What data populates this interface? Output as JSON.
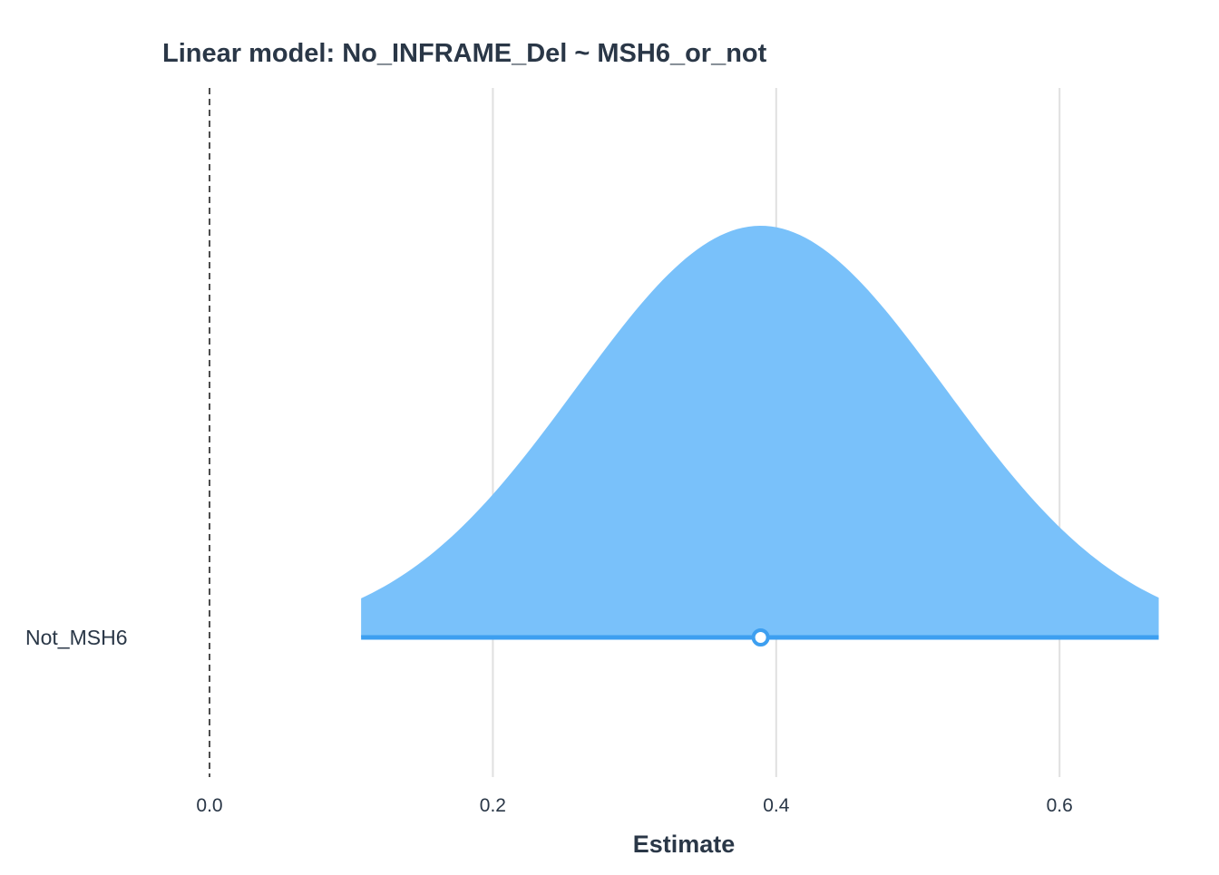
{
  "chart_data": {
    "type": "area",
    "title": "Linear model: No_INFRAME_Del ~ MSH6_or_not",
    "xlabel": "Estimate",
    "ylabel": "",
    "xlim": [
      -0.1,
      0.67
    ],
    "x_ticks": [
      0.0,
      0.2,
      0.4,
      0.6
    ],
    "x_tick_labels": [
      "0.0",
      "0.2",
      "0.4",
      "0.6"
    ],
    "grid": "vertical major gridlines",
    "reference_line": {
      "x": 0.0,
      "style": "dashed"
    },
    "categories": [
      "Not_MSH6"
    ],
    "series": [
      {
        "category": "Not_MSH6",
        "estimate": 0.389,
        "interval": [
          0.107,
          0.67
        ],
        "distribution": "normal",
        "sd": 0.13
      }
    ],
    "colors": {
      "fill": "#76c0fa",
      "line": "#3d9ff0",
      "point_fill": "#ffffff",
      "grid": "#e0e0e0",
      "reference": "#222222",
      "text": "#2a3747"
    }
  }
}
